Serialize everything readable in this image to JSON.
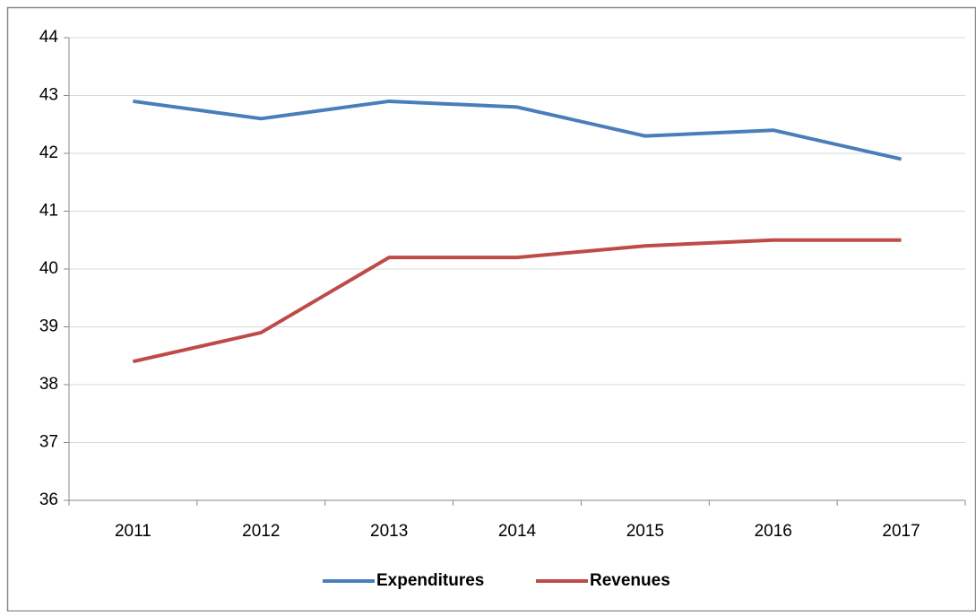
{
  "chart_data": {
    "type": "line",
    "categories": [
      "2011",
      "2012",
      "2013",
      "2014",
      "2015",
      "2016",
      "2017"
    ],
    "series": [
      {
        "name": "Expenditures",
        "color": "#4a7ebb",
        "values": [
          42.9,
          42.6,
          42.9,
          42.8,
          42.3,
          42.4,
          41.9
        ]
      },
      {
        "name": "Revenues",
        "color": "#be4b48",
        "values": [
          38.4,
          38.9,
          40.2,
          40.2,
          40.4,
          40.5,
          40.5
        ]
      }
    ],
    "ylim": [
      36,
      44
    ],
    "yticks": [
      36,
      37,
      38,
      39,
      40,
      41,
      42,
      43,
      44
    ],
    "grid": true,
    "legend": "bottom"
  }
}
